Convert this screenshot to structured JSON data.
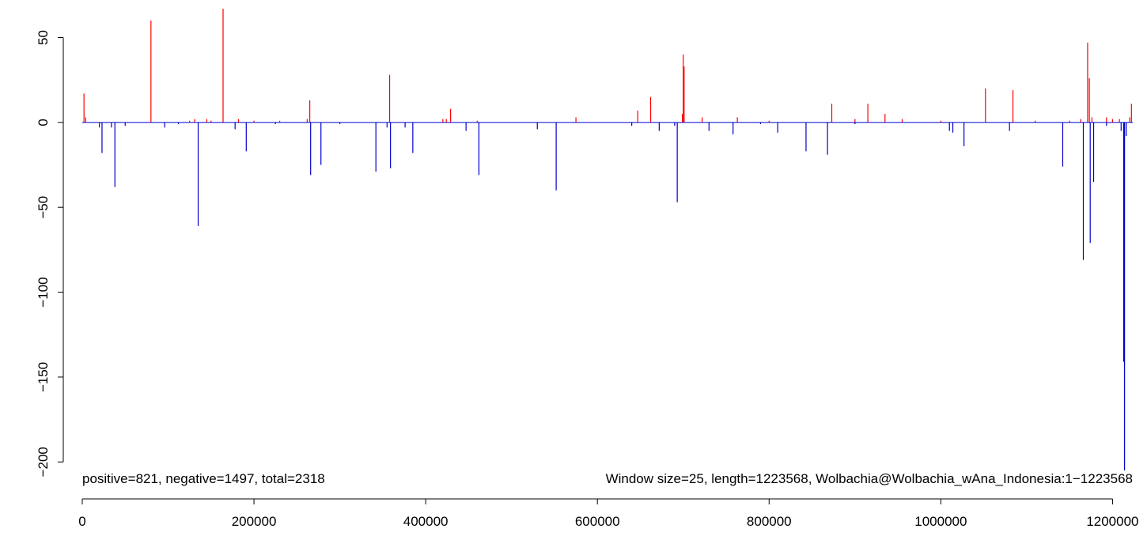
{
  "chart_data": {
    "type": "bar",
    "title": "",
    "xlabel": "",
    "ylabel": "",
    "xlim": [
      0,
      1223568
    ],
    "ylim": [
      -205,
      67
    ],
    "x_ticks": [
      0,
      200000,
      400000,
      600000,
      800000,
      1000000,
      1200000
    ],
    "x_tick_labels": [
      "0",
      "200000",
      "400000",
      "600000",
      "800000",
      "1000000",
      "1200000"
    ],
    "y_ticks": [
      50,
      0,
      -50,
      -100,
      -150,
      -200
    ],
    "y_tick_labels": [
      "50",
      "0",
      "−50",
      "−100",
      "−150",
      "−200"
    ],
    "grid": false,
    "colors": {
      "positive": "#ff0000",
      "negative": "#0000cc",
      "axis": "#000000"
    },
    "annotations": {
      "left": "positive=821, negative=1497, total=2318",
      "right": "Window size=25, length=1223568, Wolbachia@Wolbachia_wAna_Indonesia:1−1223568"
    },
    "series": [
      {
        "sign": "positive",
        "x": [
          2000,
          4000,
          80000,
          125000,
          131000,
          145000,
          150000,
          164000,
          182000,
          200000,
          230000,
          262000,
          265000,
          358000,
          420000,
          424000,
          429000,
          460000,
          575000,
          647000,
          662000,
          699000,
          700000,
          701000,
          722000,
          763000,
          800000,
          873000,
          900000,
          915000,
          935000,
          955000,
          1000000,
          1052000,
          1084000,
          1110000,
          1150000,
          1163000,
          1171000,
          1173000,
          1176000,
          1193000,
          1200000,
          1208000,
          1220000,
          1222000
        ],
        "y": [
          17,
          3,
          60,
          1,
          2,
          2,
          1,
          67,
          2,
          1,
          1,
          2,
          13,
          28,
          2,
          2,
          8,
          1,
          3,
          7,
          15,
          5,
          40,
          33,
          3,
          3,
          1,
          11,
          2,
          11,
          5,
          2,
          1,
          20,
          19,
          1,
          1,
          2,
          47,
          26,
          3,
          3,
          2,
          2,
          3,
          11
        ]
      },
      {
        "sign": "negative",
        "x": [
          20000,
          23000,
          34000,
          38000,
          50000,
          96000,
          112000,
          135000,
          178000,
          191000,
          225000,
          266000,
          278000,
          300000,
          342000,
          355000,
          359000,
          376000,
          385000,
          447000,
          462000,
          530000,
          552000,
          640000,
          672000,
          690000,
          693000,
          730000,
          758000,
          790000,
          810000,
          843000,
          868000,
          900000,
          1010000,
          1014000,
          1027000,
          1080000,
          1142000,
          1166000,
          1174000,
          1178000,
          1193000,
          1210000,
          1213000,
          1214000,
          1216000
        ],
        "y": [
          -3,
          -18,
          -3,
          -38,
          -2,
          -3,
          -1,
          -61,
          -4,
          -17,
          -1,
          -31,
          -25,
          -1,
          -29,
          -3,
          -27,
          -3,
          -18,
          -5,
          -31,
          -4,
          -40,
          -2,
          -5,
          -2,
          -47,
          -5,
          -7,
          -1,
          -6,
          -17,
          -19,
          -1,
          -5,
          -6,
          -14,
          -5,
          -26,
          -81,
          -71,
          -35,
          -2,
          -5,
          -141,
          -205,
          -8
        ]
      }
    ]
  }
}
